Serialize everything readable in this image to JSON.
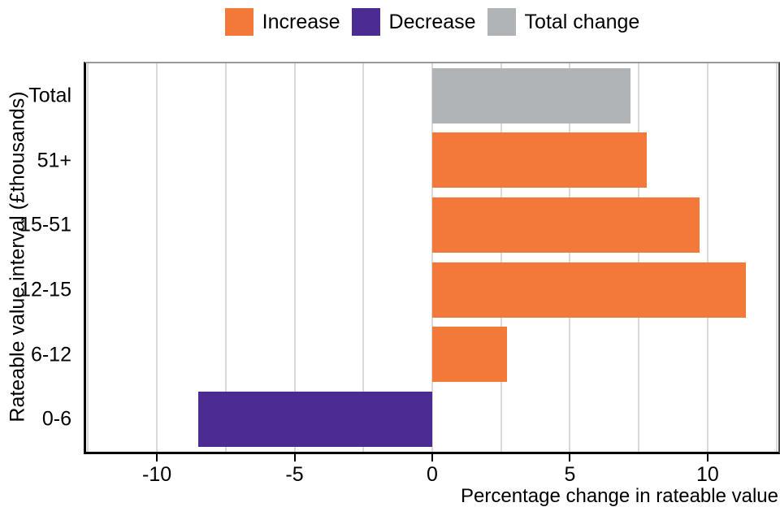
{
  "legend": {
    "items": [
      {
        "label": "Increase",
        "color": "#F3793A"
      },
      {
        "label": "Decrease",
        "color": "#4C2C92"
      },
      {
        "label": "Total change",
        "color": "#B1B4B7"
      }
    ]
  },
  "chart_data": {
    "type": "bar",
    "orientation": "horizontal",
    "title": "",
    "xlabel": "Percentage change in rateable value",
    "ylabel": "Rateable value interval (£thousands)",
    "categories": [
      "Total",
      "51+",
      "15-51",
      "12-15",
      "6-12",
      "0-6"
    ],
    "values": [
      7.2,
      7.8,
      9.7,
      11.4,
      2.7,
      -8.5
    ],
    "series_membership": [
      "Total change",
      "Increase",
      "Increase",
      "Increase",
      "Increase",
      "Decrease"
    ],
    "bar_colors": [
      "#B1B4B7",
      "#F3793A",
      "#F3793A",
      "#F3793A",
      "#F3793A",
      "#4C2C92"
    ],
    "xlim": [
      -12.57,
      12.57
    ],
    "xticks": [
      -10,
      -5,
      0,
      5,
      10
    ],
    "xtick_labels": [
      "-10",
      "-5",
      "0",
      "5",
      "10"
    ],
    "gridlines": [
      -12.5,
      -10,
      -7.5,
      -5,
      -2.5,
      0,
      2.5,
      5,
      7.5,
      10,
      12.5
    ],
    "grid": "vertical-on",
    "legend_position": "top-center",
    "colors": {
      "grid": "#d9d9d9",
      "axis": "#000000",
      "background": "#ffffff"
    }
  }
}
